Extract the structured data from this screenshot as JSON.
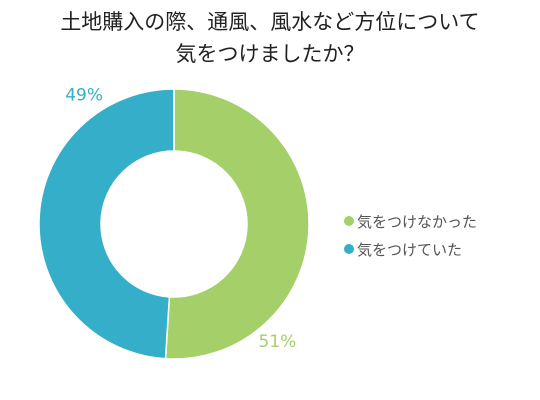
{
  "title": {
    "line1": "土地購入の際、通風、風水など方位について",
    "line2": "気をつけましたか？"
  },
  "chart_data": {
    "type": "pie",
    "donut": true,
    "series": [
      {
        "name": "気をつけなかった",
        "value": 51,
        "label": "51%",
        "color": "#a5cf68"
      },
      {
        "name": "気をつけていた",
        "value": 49,
        "label": "49%",
        "color": "#35aec9"
      }
    ],
    "legend_position": "right"
  }
}
